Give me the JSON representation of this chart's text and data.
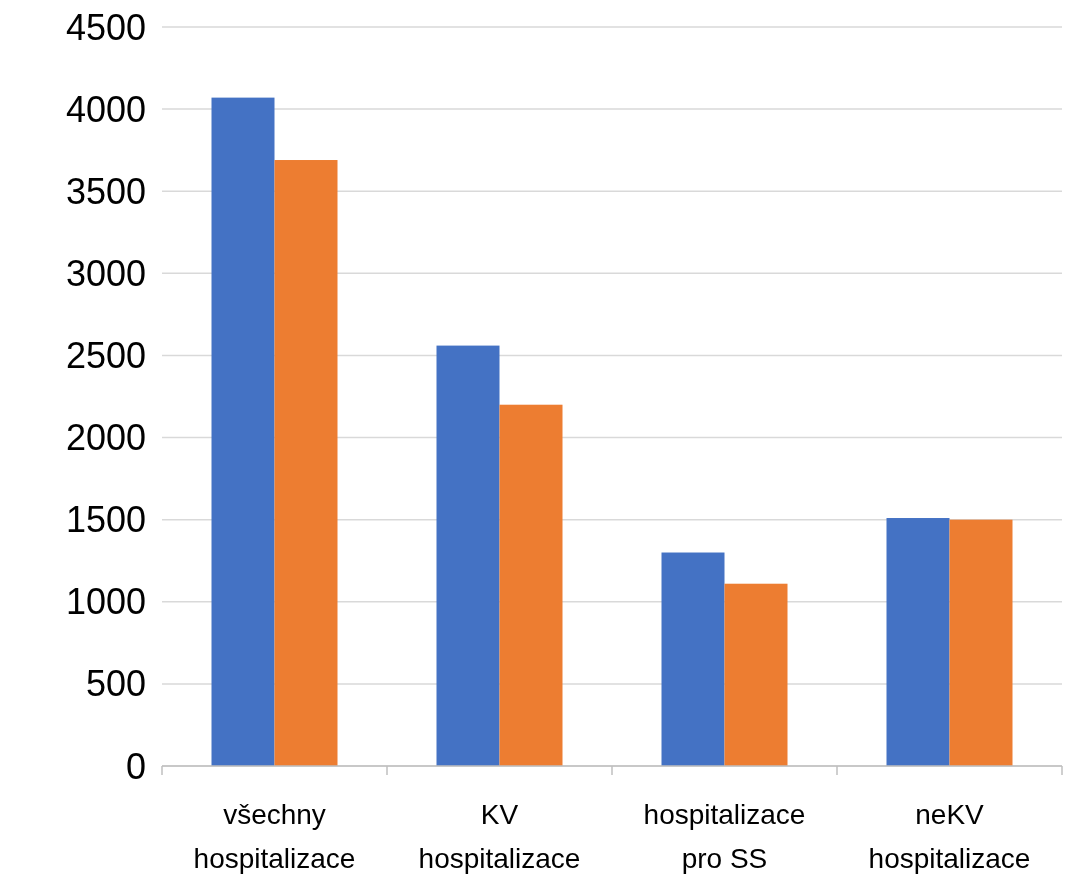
{
  "chart_data": {
    "type": "bar",
    "categories": [
      "všechny hospitalizace",
      "KV hospitalizace",
      "hospitalizace pro SS",
      "neKV hospitalizace"
    ],
    "series": [
      {
        "color": "#4472c4",
        "values": [
          4070,
          2560,
          1300,
          1510
        ]
      },
      {
        "color": "#ed7d31",
        "values": [
          3690,
          2200,
          1110,
          1500
        ]
      }
    ],
    "ylim": [
      0,
      4500
    ],
    "yticks": [
      0,
      500,
      1000,
      1500,
      2000,
      2500,
      3000,
      3500,
      4000,
      4500
    ],
    "grid": "y"
  }
}
